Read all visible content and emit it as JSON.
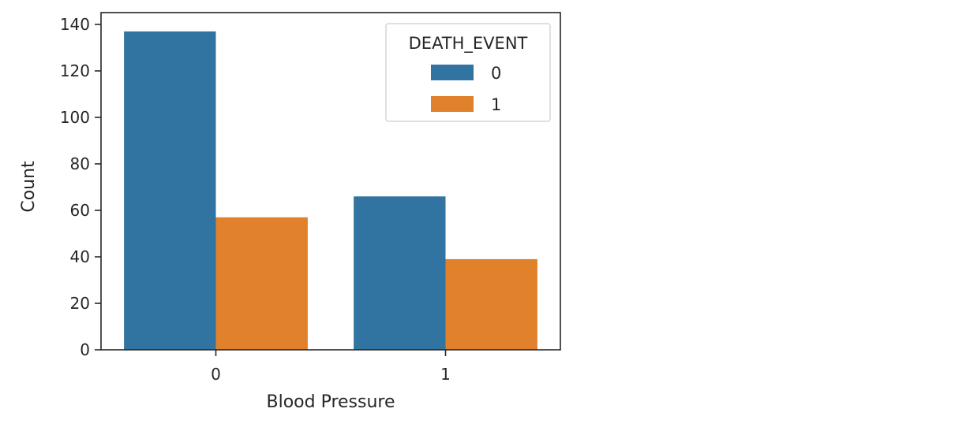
{
  "chart_data": {
    "type": "bar",
    "categories": [
      "0",
      "1"
    ],
    "series": [
      {
        "name": "0",
        "values": [
          137,
          66
        ],
        "color": "#3274a1"
      },
      {
        "name": "1",
        "values": [
          57,
          39
        ],
        "color": "#e1812c"
      }
    ],
    "title": "",
    "xlabel": "Blood Pressure",
    "ylabel": "Count",
    "ylim": [
      0,
      140
    ],
    "yticks": [
      0,
      20,
      40,
      60,
      80,
      100,
      120,
      140
    ],
    "grid": false,
    "legend": {
      "title": "DEATH_EVENT",
      "placement": "top-right"
    }
  }
}
